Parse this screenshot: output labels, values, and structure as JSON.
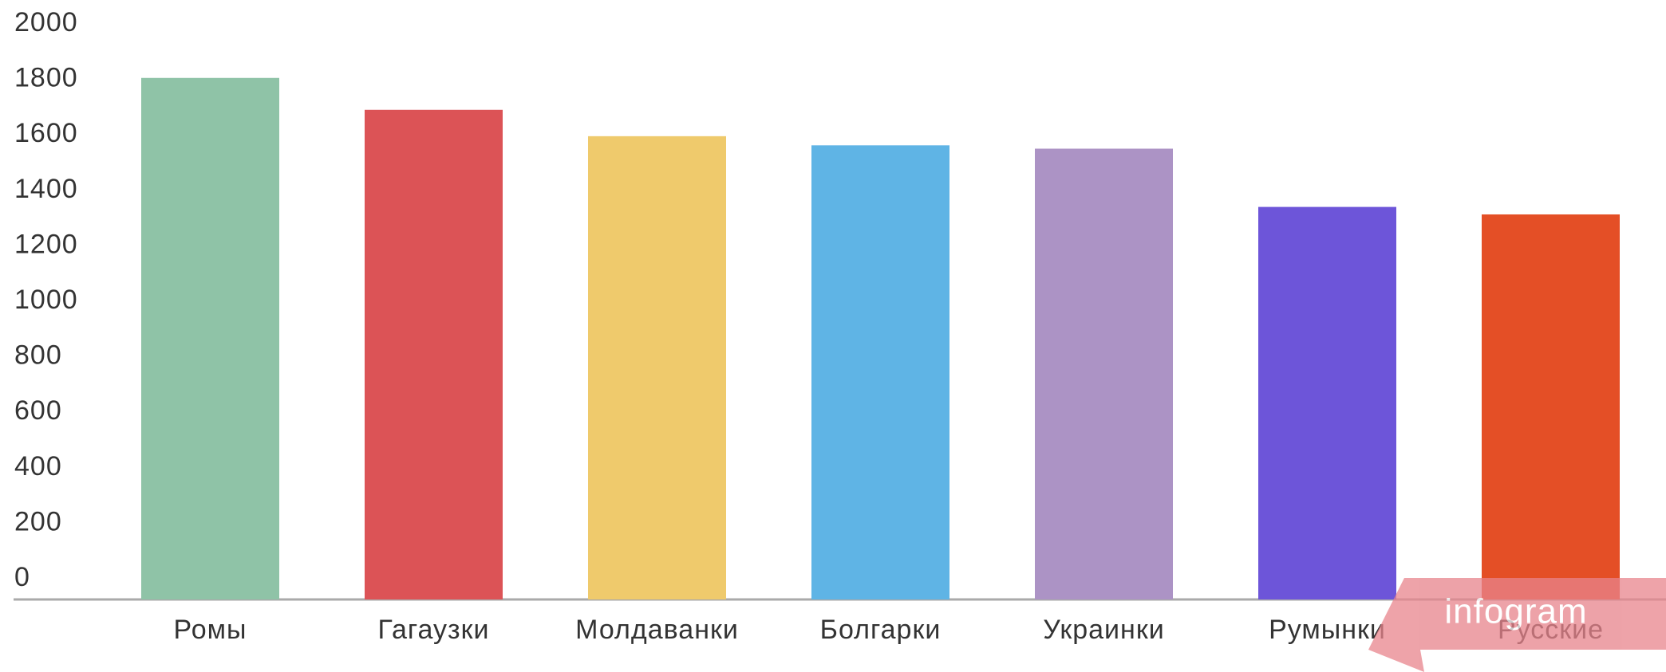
{
  "chart_data": {
    "type": "bar",
    "categories": [
      "Ромы",
      "Гагаузки",
      "Молдаванки",
      "Болгарки",
      "Украинки",
      "Румынки",
      "Русские"
    ],
    "values": [
      1880,
      1765,
      1670,
      1637,
      1625,
      1415,
      1388
    ],
    "colors": [
      "#8fc3a7",
      "#dc5356",
      "#efca6c",
      "#5fb4e5",
      "#ac93c5",
      "#6d55d9",
      "#e44f26"
    ],
    "ylim": [
      0,
      2000
    ],
    "yticks": [
      0,
      200,
      400,
      600,
      800,
      1000,
      1200,
      1400,
      1600,
      1800,
      2000
    ],
    "grid": false,
    "watermark": "infogram"
  }
}
